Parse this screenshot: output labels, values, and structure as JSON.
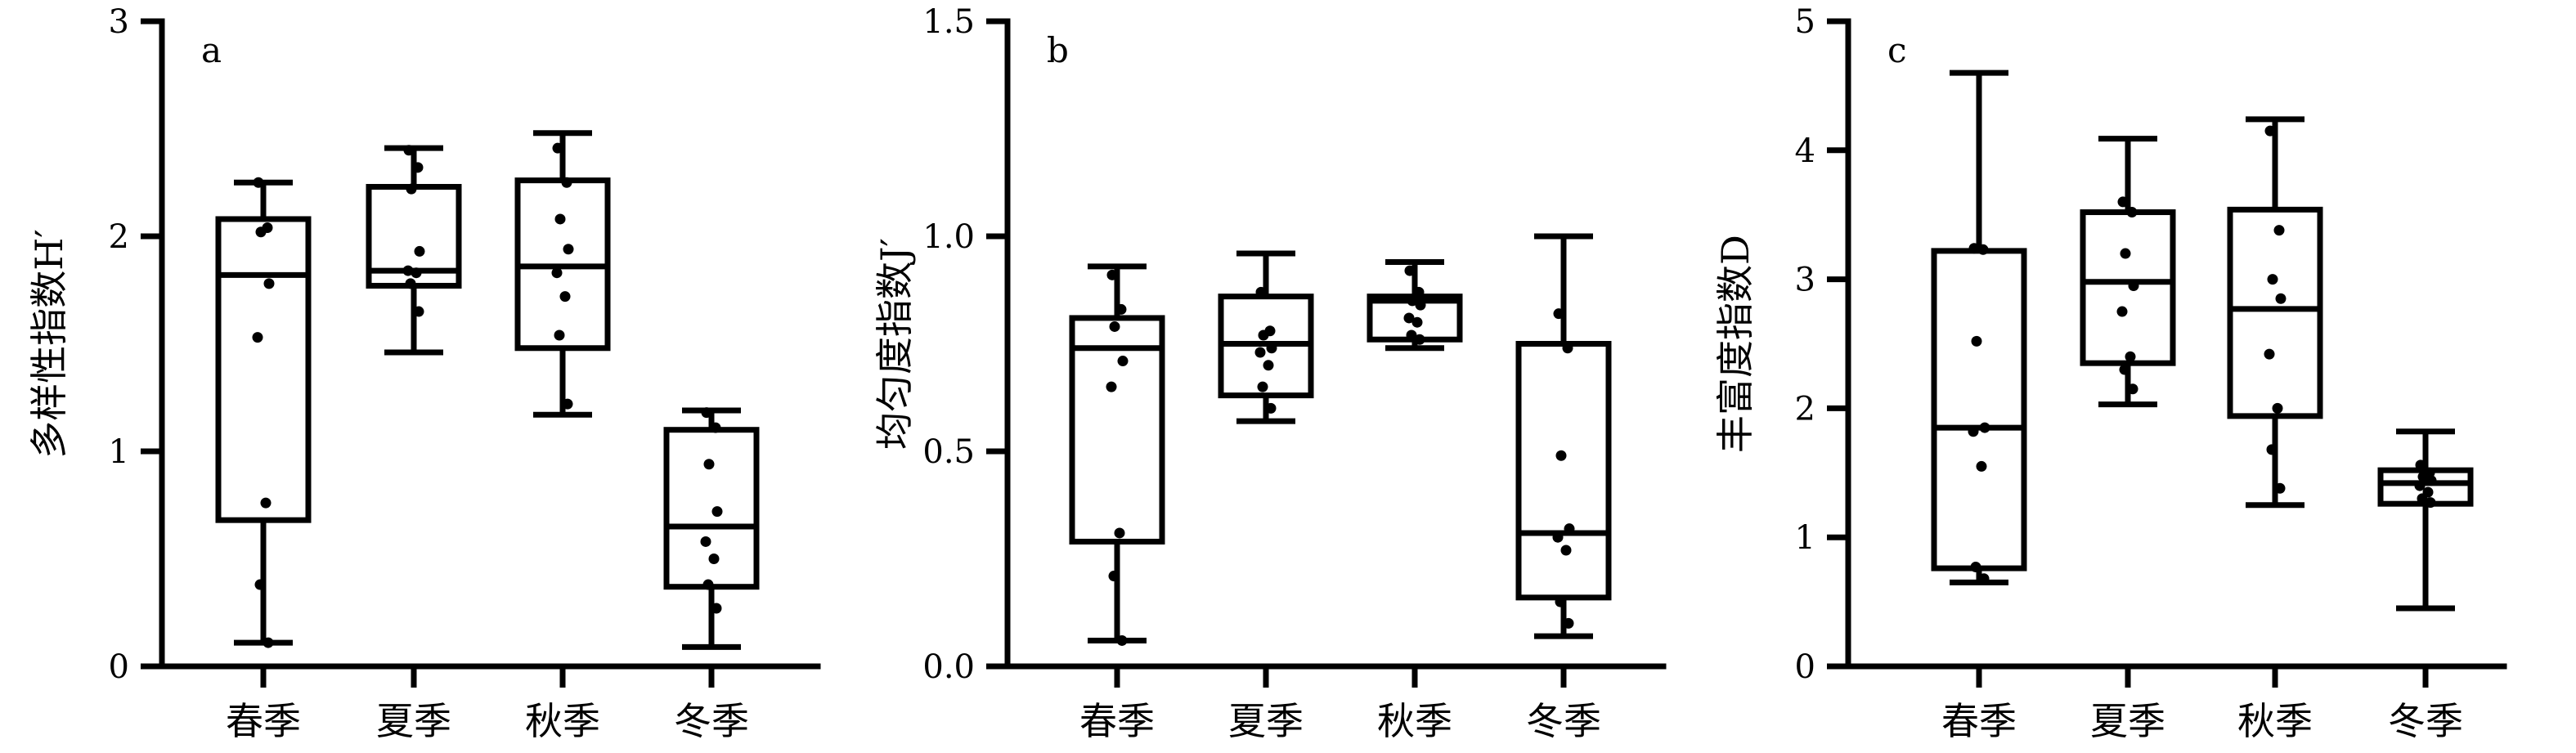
{
  "chart_data": [
    {
      "type": "box",
      "panel_label": "a",
      "ylabel": "多样性指数H′",
      "ylim": [
        0,
        3
      ],
      "yticks": [
        "0",
        "1",
        "2",
        "3"
      ],
      "categories": [
        "春季",
        "夏季",
        "秋季",
        "冬季"
      ],
      "boxes": [
        {
          "category": "春季",
          "min": 0.11,
          "q1": 0.68,
          "median": 1.82,
          "q3": 2.08,
          "max": 2.25,
          "points": [
            2.25,
            2.04,
            2.02,
            1.78,
            1.53,
            0.76,
            0.38,
            0.11
          ]
        },
        {
          "category": "夏季",
          "min": 1.46,
          "q1": 1.77,
          "median": 1.84,
          "q3": 2.23,
          "max": 2.41,
          "points": [
            2.4,
            2.32,
            2.22,
            1.93,
            1.84,
            1.83,
            1.78,
            1.65
          ]
        },
        {
          "category": "秋季",
          "min": 1.17,
          "q1": 1.48,
          "median": 1.86,
          "q3": 2.26,
          "max": 2.48,
          "points": [
            2.41,
            2.25,
            2.08,
            1.94,
            1.83,
            1.72,
            1.54,
            1.22
          ]
        },
        {
          "category": "冬季",
          "min": 0.09,
          "q1": 0.37,
          "median": 0.65,
          "q3": 1.1,
          "max": 1.19,
          "points": [
            1.18,
            1.11,
            0.94,
            0.72,
            0.58,
            0.5,
            0.38,
            0.27
          ]
        }
      ]
    },
    {
      "type": "box",
      "panel_label": "b",
      "ylabel": "均匀度指数J′",
      "ylim": [
        0,
        1.5
      ],
      "yticks": [
        "0.0",
        "0.5",
        "1.0",
        "1.5"
      ],
      "categories": [
        "春季",
        "夏季",
        "秋季",
        "冬季"
      ],
      "boxes": [
        {
          "category": "春季",
          "min": 0.06,
          "q1": 0.29,
          "median": 0.74,
          "q3": 0.81,
          "max": 0.93,
          "points": [
            0.91,
            0.83,
            0.79,
            0.71,
            0.65,
            0.31,
            0.21,
            0.06
          ]
        },
        {
          "category": "夏季",
          "min": 0.57,
          "q1": 0.63,
          "median": 0.75,
          "q3": 0.86,
          "max": 0.96,
          "points": [
            0.87,
            0.78,
            0.77,
            0.74,
            0.73,
            0.7,
            0.65,
            0.6
          ]
        },
        {
          "category": "秋季",
          "min": 0.74,
          "q1": 0.76,
          "median": 0.85,
          "q3": 0.86,
          "max": 0.94,
          "points": [
            0.92,
            0.87,
            0.85,
            0.84,
            0.81,
            0.8,
            0.77,
            0.76
          ]
        },
        {
          "category": "冬季",
          "min": 0.07,
          "q1": 0.16,
          "median": 0.31,
          "q3": 0.75,
          "max": 1.0,
          "points": [
            0.82,
            0.74,
            0.49,
            0.32,
            0.3,
            0.27,
            0.15,
            0.1
          ]
        }
      ]
    },
    {
      "type": "box",
      "panel_label": "c",
      "ylabel": "丰富度指数D",
      "ylim": [
        0,
        5
      ],
      "yticks": [
        "0",
        "1",
        "2",
        "3",
        "4",
        "5"
      ],
      "categories": [
        "春季",
        "夏季",
        "秋季",
        "冬季"
      ],
      "boxes": [
        {
          "category": "春季",
          "min": 0.65,
          "q1": 0.76,
          "median": 1.85,
          "q3": 3.22,
          "max": 4.6,
          "points": [
            3.24,
            3.23,
            2.52,
            1.85,
            1.82,
            1.55,
            0.77,
            0.68
          ]
        },
        {
          "category": "夏季",
          "min": 2.03,
          "q1": 2.35,
          "median": 2.98,
          "q3": 3.52,
          "max": 4.09,
          "points": [
            3.6,
            3.52,
            3.2,
            2.95,
            2.75,
            2.4,
            2.3,
            2.15
          ]
        },
        {
          "category": "秋季",
          "min": 1.25,
          "q1": 1.94,
          "median": 2.77,
          "q3": 3.54,
          "max": 4.24,
          "points": [
            4.15,
            3.38,
            3.0,
            2.85,
            2.42,
            2.0,
            1.68,
            1.38
          ]
        },
        {
          "category": "冬季",
          "min": 0.45,
          "q1": 1.26,
          "median": 1.42,
          "q3": 1.52,
          "max": 1.82,
          "points": [
            1.56,
            1.5,
            1.47,
            1.44,
            1.4,
            1.35,
            1.3,
            1.27
          ]
        }
      ]
    }
  ]
}
